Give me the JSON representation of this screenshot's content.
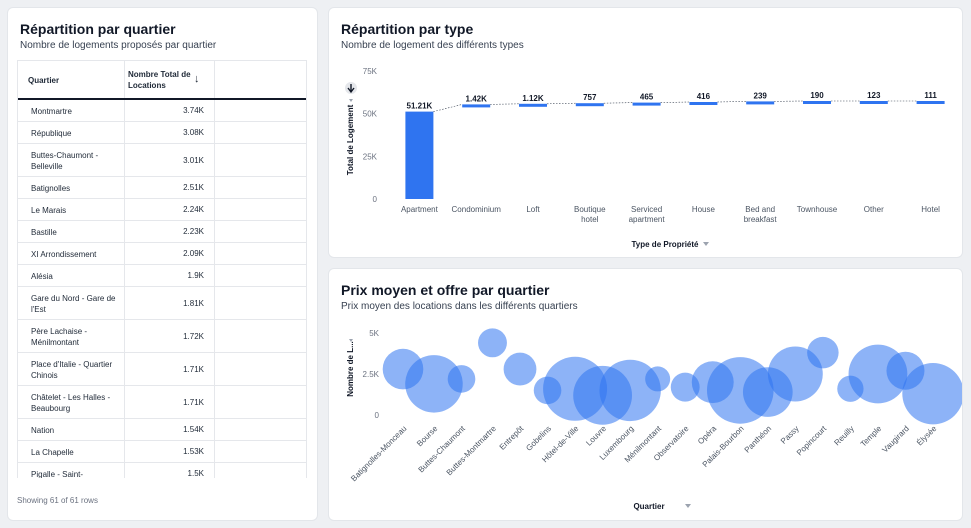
{
  "colors": {
    "accent": "#2f74f0",
    "bubble": "#2f74f0"
  },
  "left_card": {
    "title": "Répartition par quartier",
    "subtitle": "Nombre de logements proposés par quartier",
    "table": {
      "columns": [
        "Quartier",
        "Nombre Total de Locations"
      ],
      "sort_icon": "arrow-down-icon",
      "rows": [
        {
          "quartier": "Montmartre",
          "total": "3.74K"
        },
        {
          "quartier": "République",
          "total": "3.08K"
        },
        {
          "quartier": "Buttes-Chaumont - Belleville",
          "total": "3.01K"
        },
        {
          "quartier": "Batignolles",
          "total": "2.51K"
        },
        {
          "quartier": "Le Marais",
          "total": "2.24K"
        },
        {
          "quartier": "Bastille",
          "total": "2.23K"
        },
        {
          "quartier": "XI Arrondissement",
          "total": "2.09K"
        },
        {
          "quartier": "Alésia",
          "total": "1.9K"
        },
        {
          "quartier": "Gare du Nord - Gare de l'Est",
          "total": "1.81K"
        },
        {
          "quartier": "Père Lachaise - Ménilmontant",
          "total": "1.72K"
        },
        {
          "quartier": "Place d'Italie - Quartier Chinois",
          "total": "1.71K"
        },
        {
          "quartier": "Châtelet - Les Halles - Beaubourg",
          "total": "1.71K"
        },
        {
          "quartier": "Nation",
          "total": "1.54K"
        },
        {
          "quartier": "La Chapelle",
          "total": "1.53K"
        },
        {
          "quartier": "Pigalle - Saint-",
          "total": "1.5K"
        }
      ]
    },
    "row_count": "Showing 61 of 61 rows"
  },
  "type_card": {
    "title": "Répartition par type",
    "subtitle": "Nombre de logement des différents types",
    "chart_data": {
      "type": "bar",
      "categories": [
        "Apartment",
        "Condominium",
        "Loft",
        "Boutique hotel",
        "Serviced apartment",
        "House",
        "Bed and breakfast",
        "Townhouse",
        "Other",
        "Hotel"
      ],
      "values": [
        51210,
        1420,
        1120,
        757,
        465,
        416,
        239,
        190,
        123,
        111
      ],
      "data_labels": [
        "51.21K",
        "1.42K",
        "1.12K",
        "757",
        "465",
        "416",
        "239",
        "190",
        "123",
        "111"
      ],
      "yticks": [
        0,
        25000,
        50000,
        75000
      ],
      "ytick_labels": [
        "0",
        "25K",
        "50K",
        "75K"
      ],
      "ylim": [
        0,
        75000
      ],
      "xlabel": "Type de Propriété",
      "ylabel": "Total de Logement",
      "axis_menu_icon": "caret-down-icon",
      "collapse_icon": "arrow-down-circle-icon"
    }
  },
  "price_card": {
    "title": "Prix moyen et offre par quartier",
    "subtitle": "Prix moyen des locations dans les différents quartiers",
    "chart_data": {
      "type": "scatter",
      "categories": [
        "Batignolles-Monceau",
        "Bourse",
        "Buttes-Chaumont",
        "Buttes-Montmartre",
        "Entrepôt",
        "Gobelins",
        "Hôtel-de-Ville",
        "Louvre",
        "Luxembourg",
        "Ménilmontant",
        "Observatoire",
        "Opéra",
        "Palais-Bourbon",
        "Panthéon",
        "Passy",
        "Popincourt",
        "Reuilly",
        "Temple",
        "Vaugirard",
        "Élysée"
      ],
      "x_index": [
        0,
        0.9,
        1.7,
        2.6,
        3.4,
        4.2,
        5,
        5.8,
        6.6,
        7.4,
        8.2,
        9,
        9.8,
        10.6,
        11.4,
        12.2,
        13,
        13.8,
        14.6,
        15.4
      ],
      "y": [
        2800,
        1900,
        2200,
        4400,
        2800,
        1500,
        1600,
        1200,
        1500,
        2200,
        1700,
        2000,
        1500,
        1400,
        2500,
        3800,
        1600,
        2500,
        2700,
        1300
      ],
      "size": [
        2.2,
        3.5,
        1.2,
        1.3,
        1.6,
        1.2,
        4.0,
        3.6,
        3.8,
        1.0,
        1.3,
        2.3,
        4.2,
        2.9,
        3.3,
        1.5,
        1.1,
        3.6,
        2.0,
        3.8
      ],
      "yticks": [
        0,
        2500,
        5000
      ],
      "ytick_labels": [
        "0",
        "2.5K",
        "5K"
      ],
      "ylim": [
        0,
        5000
      ],
      "xlabel": "Quartier",
      "ylabel": "Nombre de L...",
      "axis_menu_icon": "caret-down-icon"
    }
  }
}
